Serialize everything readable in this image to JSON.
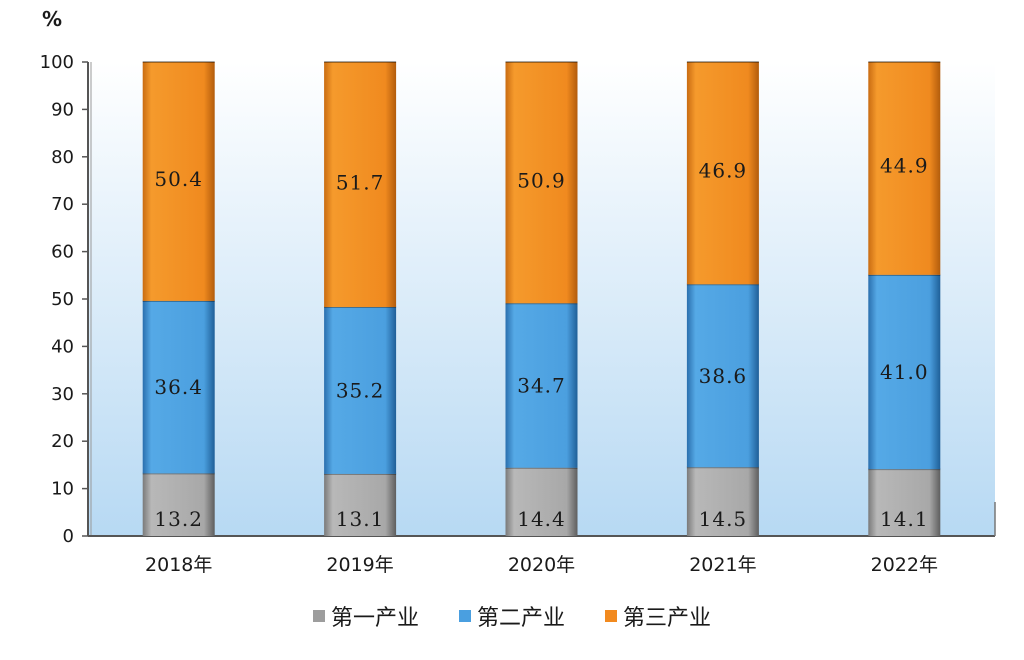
{
  "chart_data": {
    "type": "bar",
    "stacked": true,
    "unit": "%",
    "categories": [
      "2018年",
      "2019年",
      "2020年",
      "2021年",
      "2022年"
    ],
    "series": [
      {
        "name": "第一产业",
        "color": "#9d9d9d",
        "values": [
          13.2,
          13.1,
          14.4,
          14.5,
          14.1
        ]
      },
      {
        "name": "第二产业",
        "color": "#4a9fe0",
        "values": [
          36.4,
          35.2,
          34.7,
          38.6,
          41.0
        ]
      },
      {
        "name": "第三产业",
        "color": "#f28a1f",
        "values": [
          50.4,
          51.7,
          50.9,
          46.9,
          44.9
        ]
      }
    ],
    "ylim": [
      0,
      100
    ],
    "yticks": [
      0,
      10,
      20,
      30,
      40,
      50,
      60,
      70,
      80,
      90,
      100
    ],
    "grid": false,
    "legend_position": "bottom",
    "background": "gradient-white-to-light-blue"
  }
}
